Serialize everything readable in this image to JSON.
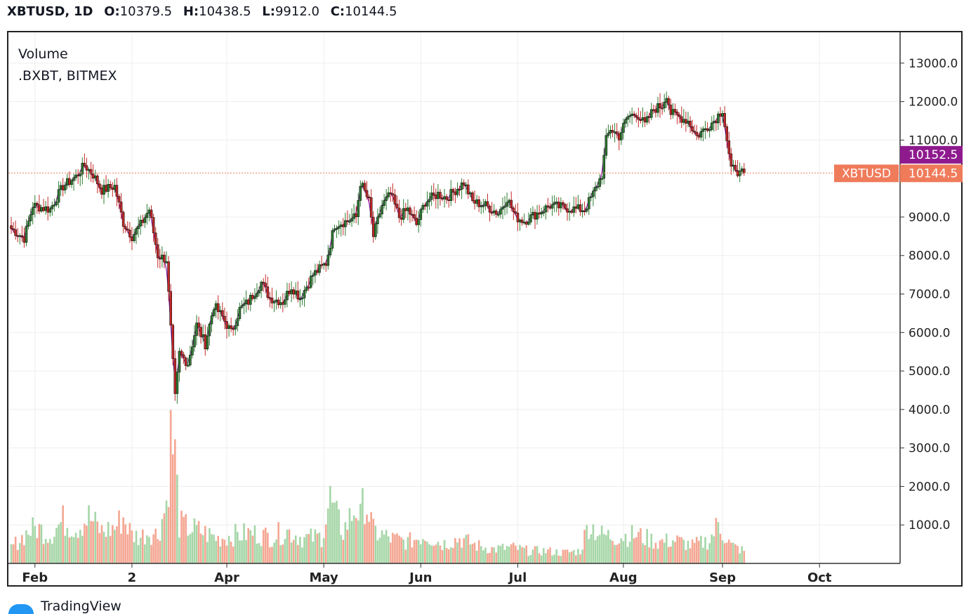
{
  "header": {
    "symbol": "XBTUSD",
    "interval": "1D",
    "open_label": "O:",
    "open": "10379.5",
    "high_label": "H:",
    "high": "10438.5",
    "low_label": "L:",
    "low": "9912.0",
    "close_label": "C:",
    "close": "10144.5"
  },
  "legend": {
    "volume": "Volume",
    "index": ".BXBT, BITMEX"
  },
  "footer": {
    "brand": "TradingView"
  },
  "price_labels": {
    "index_price": "10152.5",
    "symbol": "XBTUSD",
    "last_price": "10144.5"
  },
  "colors": {
    "up": "#2e7d32",
    "down": "#c62828",
    "volume_up": "#a5d6a7",
    "volume_down": "#f4a692",
    "index_line": "#9c27b0",
    "index_badge": "#8e1a8e",
    "last_badge": "#ef7b5b"
  },
  "chart_data": {
    "type": "candlestick",
    "x_tick_labels": [
      "Feb",
      "2",
      "Apr",
      "May",
      "Jun",
      "Jul",
      "Aug",
      "Sep",
      "Oct"
    ],
    "y_tick_labels": [
      "1000.0",
      "2000.0",
      "3000.0",
      "4000.0",
      "5000.0",
      "6000.0",
      "7000.0",
      "8000.0",
      "9000.0",
      "11000.0",
      "12000.0",
      "13000.0"
    ],
    "ylim": [
      0,
      13800
    ],
    "last_price": 10144.5,
    "index_price": 10152.5,
    "series": [
      {
        "name": "XBTUSD",
        "anchors": [
          [
            0,
            8700
          ],
          [
            6,
            8450
          ],
          [
            10,
            9300
          ],
          [
            18,
            9200
          ],
          [
            24,
            9800
          ],
          [
            30,
            10050
          ],
          [
            34,
            10350
          ],
          [
            38,
            10100
          ],
          [
            42,
            9700
          ],
          [
            48,
            9800
          ],
          [
            52,
            8850
          ],
          [
            56,
            8500
          ],
          [
            60,
            8800
          ],
          [
            64,
            9200
          ],
          [
            68,
            8000
          ],
          [
            72,
            7900
          ],
          [
            76,
            4300
          ],
          [
            78,
            5450
          ],
          [
            82,
            5200
          ],
          [
            86,
            6200
          ],
          [
            90,
            5700
          ],
          [
            94,
            6700
          ],
          [
            98,
            6400
          ],
          [
            102,
            6000
          ],
          [
            106,
            6600
          ],
          [
            110,
            6800
          ],
          [
            116,
            7300
          ],
          [
            120,
            6900
          ],
          [
            126,
            6800
          ],
          [
            130,
            7200
          ],
          [
            134,
            6900
          ],
          [
            140,
            7500
          ],
          [
            146,
            7800
          ],
          [
            150,
            8800
          ],
          [
            156,
            8900
          ],
          [
            160,
            9000
          ],
          [
            162,
            9900
          ],
          [
            166,
            9400
          ],
          [
            168,
            8500
          ],
          [
            172,
            9300
          ],
          [
            176,
            9600
          ],
          [
            180,
            9000
          ],
          [
            184,
            9200
          ],
          [
            188,
            8800
          ],
          [
            192,
            9400
          ],
          [
            198,
            9600
          ],
          [
            202,
            9500
          ],
          [
            206,
            9700
          ],
          [
            210,
            9900
          ],
          [
            214,
            9400
          ],
          [
            220,
            9300
          ],
          [
            226,
            9100
          ],
          [
            230,
            9500
          ],
          [
            234,
            9000
          ],
          [
            238,
            8900
          ],
          [
            244,
            9100
          ],
          [
            250,
            9300
          ],
          [
            256,
            9250
          ],
          [
            262,
            9200
          ],
          [
            266,
            9200
          ],
          [
            270,
            9600
          ],
          [
            274,
            10100
          ],
          [
            276,
            11000
          ],
          [
            278,
            11300
          ],
          [
            282,
            11100
          ],
          [
            286,
            11600
          ],
          [
            290,
            11700
          ],
          [
            294,
            11400
          ],
          [
            298,
            11800
          ],
          [
            302,
            11900
          ],
          [
            304,
            12200
          ],
          [
            306,
            11700
          ],
          [
            310,
            11600
          ],
          [
            314,
            11500
          ],
          [
            318,
            11100
          ],
          [
            322,
            11300
          ],
          [
            326,
            11500
          ],
          [
            330,
            11800
          ],
          [
            332,
            11000
          ],
          [
            334,
            10200
          ],
          [
            336,
            10300
          ],
          [
            338,
            10100
          ],
          [
            340,
            10150
          ]
        ]
      },
      {
        "name": "Volume",
        "anchors": [
          [
            0,
            450
          ],
          [
            8,
            900
          ],
          [
            12,
            1000
          ],
          [
            18,
            800
          ],
          [
            24,
            1200
          ],
          [
            30,
            1000
          ],
          [
            36,
            1300
          ],
          [
            42,
            900
          ],
          [
            48,
            1000
          ],
          [
            52,
            1300
          ],
          [
            56,
            800
          ],
          [
            60,
            750
          ],
          [
            64,
            900
          ],
          [
            68,
            800
          ],
          [
            70,
            1250
          ],
          [
            72,
            1700
          ],
          [
            74,
            3500
          ],
          [
            76,
            3000
          ],
          [
            78,
            1100
          ],
          [
            82,
            1000
          ],
          [
            88,
            900
          ],
          [
            96,
            700
          ],
          [
            104,
            800
          ],
          [
            112,
            850
          ],
          [
            120,
            750
          ],
          [
            128,
            900
          ],
          [
            136,
            700
          ],
          [
            144,
            750
          ],
          [
            148,
            1800
          ],
          [
            150,
            1400
          ],
          [
            154,
            900
          ],
          [
            160,
            1600
          ],
          [
            162,
            1250
          ],
          [
            164,
            1850
          ],
          [
            168,
            900
          ],
          [
            176,
            700
          ],
          [
            184,
            600
          ],
          [
            192,
            800
          ],
          [
            200,
            550
          ],
          [
            208,
            700
          ],
          [
            216,
            500
          ],
          [
            224,
            400
          ],
          [
            232,
            450
          ],
          [
            240,
            350
          ],
          [
            248,
            350
          ],
          [
            256,
            300
          ],
          [
            264,
            350
          ],
          [
            268,
            1150
          ],
          [
            270,
            1000
          ],
          [
            274,
            800
          ],
          [
            280,
            750
          ],
          [
            290,
            800
          ],
          [
            300,
            600
          ],
          [
            308,
            650
          ],
          [
            316,
            500
          ],
          [
            324,
            650
          ],
          [
            328,
            1100
          ],
          [
            330,
            900
          ],
          [
            334,
            500
          ],
          [
            340,
            350
          ]
        ]
      }
    ]
  }
}
